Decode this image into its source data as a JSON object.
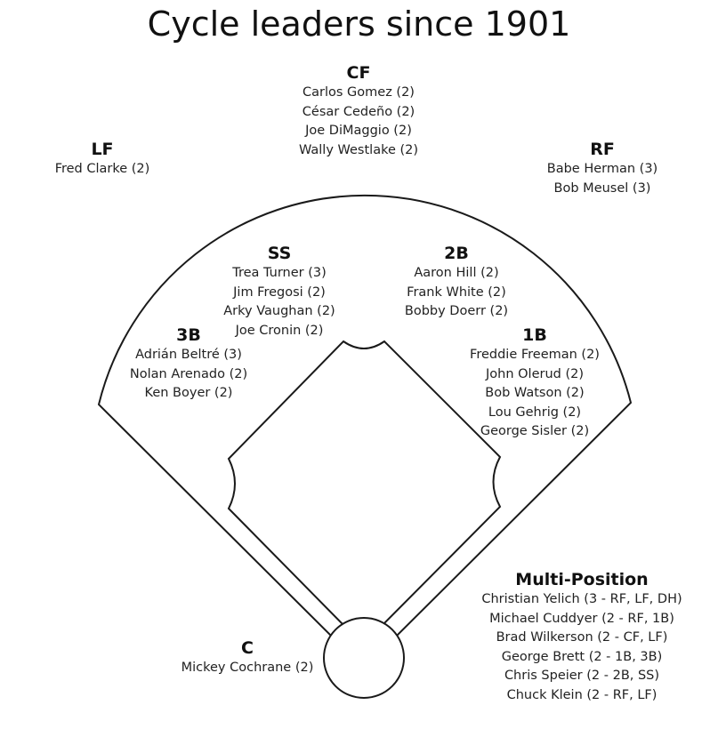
{
  "title": "Cycle leaders since 1901",
  "positions": {
    "cf": {
      "label": "CF",
      "players": [
        "Carlos Gomez (2)",
        "César Cedeño (2)",
        "Joe DiMaggio (2)",
        "Wally Westlake (2)"
      ]
    },
    "lf": {
      "label": "LF",
      "players": [
        "Fred Clarke (2)"
      ]
    },
    "rf": {
      "label": "RF",
      "players": [
        "Babe Herman (3)",
        "Bob Meusel (3)"
      ]
    },
    "ss": {
      "label": "SS",
      "players": [
        "Trea Turner (3)",
        "Jim Fregosi (2)",
        "Arky Vaughan (2)",
        "Joe Cronin (2)"
      ]
    },
    "second_base": {
      "label": "2B",
      "players": [
        "Aaron Hill (2)",
        "Frank White (2)",
        "Bobby Doerr (2)"
      ]
    },
    "third_base": {
      "label": "3B",
      "players": [
        "Adrián Beltré (3)",
        "Nolan Arenado (2)",
        "Ken Boyer (2)"
      ]
    },
    "first_base": {
      "label": "1B",
      "players": [
        "Freddie Freeman (2)",
        "John Olerud (2)",
        "Bob Watson (2)",
        "Lou Gehrig (2)",
        "George Sisler (2)"
      ]
    },
    "catcher": {
      "label": "C",
      "players": [
        "Mickey Cochrane (2)"
      ]
    },
    "multi": {
      "label": "Multi-Position",
      "players": [
        "Christian Yelich (3 - RF, LF, DH)",
        "Michael Cuddyer (2 - RF, 1B)",
        "Brad Wilkerson (2 - CF, LF)",
        "George Brett (2 - 1B, 3B)",
        "Chris Speier (2 - 2B, SS)",
        "Chuck Klein (2 - RF, LF)"
      ]
    }
  },
  "colors": {
    "line": "#1a1a1a",
    "text": "#1a1a1a"
  }
}
